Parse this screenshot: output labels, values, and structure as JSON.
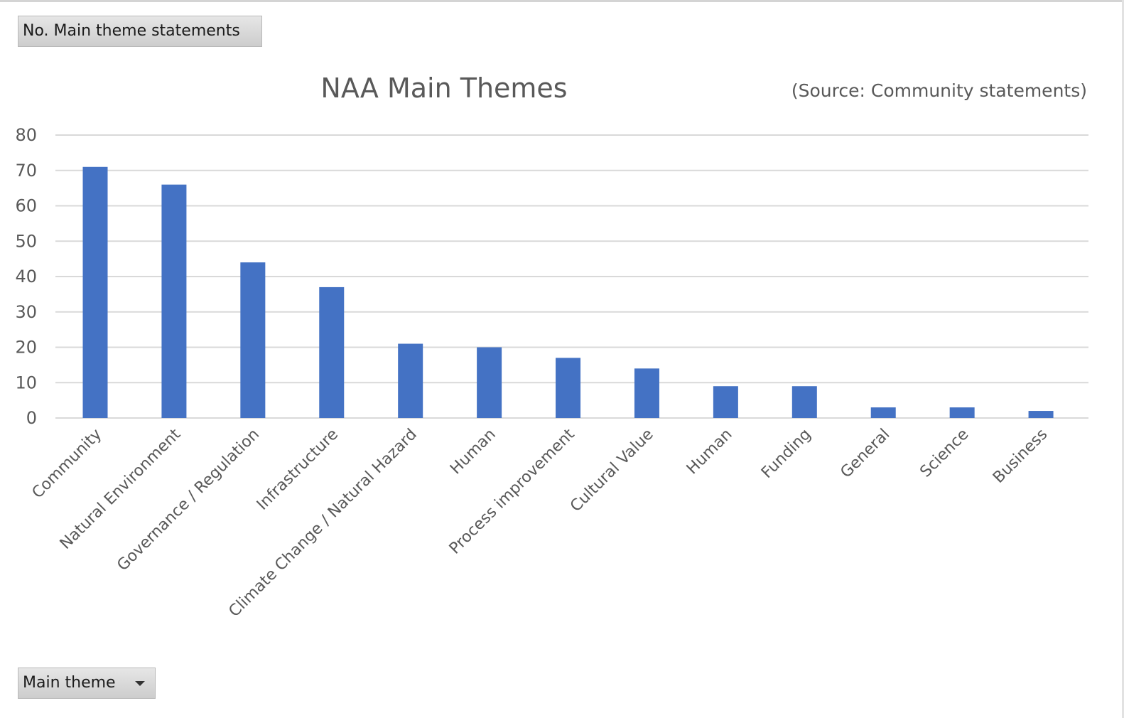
{
  "pivot": {
    "value_field_label": "No. Main theme statements",
    "axis_field_label": "Main theme"
  },
  "chart_data": {
    "type": "bar",
    "title": "NAA Main Themes",
    "subtitle": "(Source: Community statements)",
    "categories": [
      "Community",
      "Natural Environment",
      "Governance / Regulation",
      "Infrastructure",
      "Climate Change / Natural Hazard",
      "Human",
      "Process improvement",
      "Cultural Value",
      "Human",
      "Funding",
      "General",
      "Science",
      "Business"
    ],
    "values": [
      71,
      66,
      44,
      37,
      21,
      20,
      17,
      14,
      9,
      9,
      3,
      3,
      2
    ],
    "ylim": [
      0,
      80
    ],
    "yticks": [
      0,
      10,
      20,
      30,
      40,
      50,
      60,
      70,
      80
    ],
    "grid": true,
    "legend": "none",
    "bar_color": "#4472c4",
    "grid_color": "#d9d9d9"
  }
}
